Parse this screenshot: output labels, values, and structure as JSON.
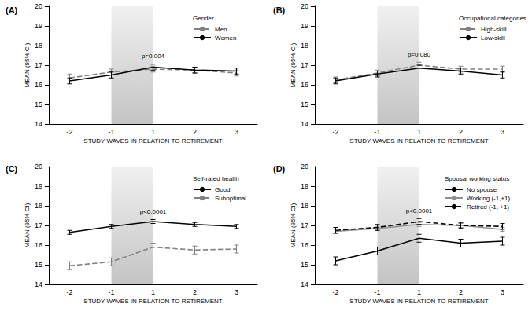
{
  "chart_data": [
    {
      "type": "line",
      "title": "(A)",
      "legend_title": "Gender",
      "annotation": "p=0.004",
      "x_label": "STUDY WAVES IN RELATION TO RETIREMENT",
      "y_label": "MEAN (95% CI)",
      "categories": [
        "-2",
        "-1",
        "1",
        "2",
        "3"
      ],
      "ylim": [
        14,
        20
      ],
      "yticks": [
        14,
        15,
        16,
        17,
        18,
        19,
        20
      ],
      "grid": false,
      "series": [
        {
          "name": "Men",
          "color": "#808080",
          "line_style": "dashed",
          "values": [
            16.35,
            16.65,
            16.8,
            16.75,
            16.6
          ],
          "ci_low": [
            16.15,
            16.5,
            16.65,
            16.6,
            16.45
          ],
          "ci_high": [
            16.55,
            16.8,
            16.95,
            16.9,
            16.75
          ]
        },
        {
          "name": "Women",
          "color": "#000000",
          "line_style": "solid",
          "values": [
            16.2,
            16.5,
            16.9,
            16.75,
            16.7
          ],
          "ci_low": [
            16.05,
            16.35,
            16.75,
            16.6,
            16.55
          ],
          "ci_high": [
            16.35,
            16.65,
            17.05,
            16.9,
            16.85
          ]
        }
      ]
    },
    {
      "type": "line",
      "title": "(B)",
      "legend_title": "Occupational categories",
      "annotation": "p=0.080",
      "x_label": "STUDY WAVES IN RELATION TO RETIREMENT",
      "y_label": "MEAN (95% CI)",
      "categories": [
        "-2",
        "-1",
        "1",
        "2",
        "3"
      ],
      "ylim": [
        14,
        20
      ],
      "yticks": [
        14,
        15,
        16,
        17,
        18,
        19,
        20
      ],
      "grid": false,
      "series": [
        {
          "name": "High-skill",
          "color": "#808080",
          "line_style": "dashed",
          "values": [
            16.25,
            16.6,
            17.0,
            16.8,
            16.8
          ],
          "ci_low": [
            16.1,
            16.45,
            16.85,
            16.65,
            16.65
          ],
          "ci_high": [
            16.4,
            16.75,
            17.15,
            16.95,
            16.95
          ]
        },
        {
          "name": "Low-skill",
          "color": "#000000",
          "line_style": "solid",
          "values": [
            16.2,
            16.55,
            16.85,
            16.7,
            16.5
          ],
          "ci_low": [
            16.05,
            16.4,
            16.7,
            16.55,
            16.35
          ],
          "ci_high": [
            16.35,
            16.7,
            17.0,
            16.85,
            16.65
          ]
        }
      ]
    },
    {
      "type": "line",
      "title": "(C)",
      "legend_title": "Self-rated health",
      "annotation": "p<0.0001",
      "x_label": "STUDY WAVES IN RELATION TO RETIREMENT",
      "y_label": "MEAN (95% CI)",
      "categories": [
        "-2",
        "-1",
        "1",
        "2",
        "3"
      ],
      "ylim": [
        14,
        20
      ],
      "yticks": [
        14,
        15,
        16,
        17,
        18,
        19,
        20
      ],
      "grid": false,
      "series": [
        {
          "name": "Good",
          "color": "#000000",
          "line_style": "solid",
          "values": [
            16.65,
            16.95,
            17.2,
            17.05,
            16.95
          ],
          "ci_low": [
            16.55,
            16.85,
            17.1,
            16.95,
            16.85
          ],
          "ci_high": [
            16.75,
            17.05,
            17.3,
            17.15,
            17.05
          ]
        },
        {
          "name": "Suboptimal",
          "color": "#808080",
          "line_style": "dashed",
          "values": [
            14.95,
            15.15,
            15.9,
            15.75,
            15.8
          ],
          "ci_low": [
            14.75,
            14.95,
            15.7,
            15.55,
            15.6
          ],
          "ci_high": [
            15.15,
            15.35,
            16.1,
            15.95,
            16.0
          ]
        }
      ]
    },
    {
      "type": "line",
      "title": "(D)",
      "legend_title": "Spousal working status",
      "annotation": "p<0.0001",
      "x_label": "STUDY WAVES IN RELATION TO RETIREMENT",
      "y_label": "MEAN (95% CI)",
      "categories": [
        "-2",
        "-1",
        "1",
        "2",
        "3"
      ],
      "ylim": [
        14,
        20
      ],
      "yticks": [
        14,
        15,
        16,
        17,
        18,
        19,
        20
      ],
      "grid": false,
      "series": [
        {
          "name": "No spouse",
          "color": "#000000",
          "line_style": "solid",
          "values": [
            15.2,
            15.7,
            16.35,
            16.1,
            16.2
          ],
          "ci_low": [
            15.0,
            15.5,
            16.15,
            15.9,
            16.0
          ],
          "ci_high": [
            15.4,
            15.9,
            16.55,
            16.3,
            16.4
          ]
        },
        {
          "name": "Working (-1,+1)",
          "color": "#909090",
          "line_style": "solid",
          "values": [
            16.7,
            16.85,
            17.05,
            17.0,
            16.8
          ],
          "ci_low": [
            16.6,
            16.75,
            16.95,
            16.9,
            16.7
          ],
          "ci_high": [
            16.8,
            16.95,
            17.15,
            17.1,
            16.9
          ]
        },
        {
          "name": "Retired (-1, +1)",
          "color": "#000000",
          "line_style": "dashed",
          "values": [
            16.75,
            16.9,
            17.2,
            17.0,
            16.95
          ],
          "ci_low": [
            16.6,
            16.75,
            17.05,
            16.85,
            16.8
          ],
          "ci_high": [
            16.9,
            17.05,
            17.35,
            17.15,
            17.1
          ]
        }
      ]
    }
  ]
}
